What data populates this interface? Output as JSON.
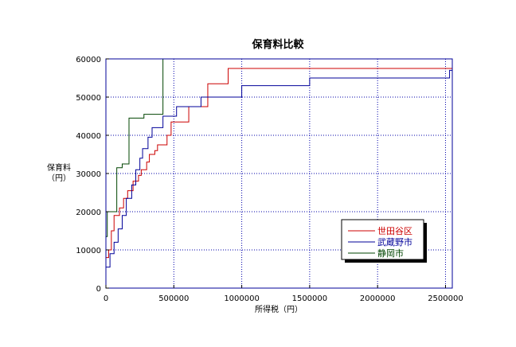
{
  "chart_data": {
    "type": "line",
    "step": true,
    "title": "保育料比較",
    "xlabel": "所得税（円）",
    "ylabel_lines": [
      "保育料",
      "（円）"
    ],
    "xlim": [
      0,
      2550000
    ],
    "ylim": [
      0,
      60000
    ],
    "x_ticks": [
      0,
      500000,
      1000000,
      1500000,
      2000000,
      2500000
    ],
    "x_tick_labels": [
      "0",
      "500000",
      "1000000",
      "1500000",
      "2000000",
      "2500000"
    ],
    "y_ticks": [
      0,
      10000,
      20000,
      30000,
      40000,
      50000,
      60000
    ],
    "y_tick_labels": [
      "0",
      "10000",
      "20000",
      "30000",
      "40000",
      "50000",
      "60000"
    ],
    "grid": true,
    "legend_position": "bottom-right",
    "series": [
      {
        "name": "世田谷区",
        "color": "#cc0000",
        "points": [
          [
            0,
            8000
          ],
          [
            20000,
            10000
          ],
          [
            40000,
            15000
          ],
          [
            60000,
            19000
          ],
          [
            100000,
            21000
          ],
          [
            130000,
            23500
          ],
          [
            160000,
            25500
          ],
          [
            200000,
            28000
          ],
          [
            240000,
            29500
          ],
          [
            260000,
            31000
          ],
          [
            300000,
            33000
          ],
          [
            320000,
            35000
          ],
          [
            360000,
            36000
          ],
          [
            380000,
            37500
          ],
          [
            450000,
            40000
          ],
          [
            480000,
            43500
          ],
          [
            610000,
            47500
          ],
          [
            750000,
            53500
          ],
          [
            900000,
            57500
          ],
          [
            2550000,
            57500
          ]
        ]
      },
      {
        "name": "武蔵野市",
        "color": "#000099",
        "points": [
          [
            0,
            5500
          ],
          [
            30000,
            9000
          ],
          [
            60000,
            12000
          ],
          [
            90000,
            15500
          ],
          [
            120000,
            19000
          ],
          [
            150000,
            23500
          ],
          [
            190000,
            27000
          ],
          [
            220000,
            31000
          ],
          [
            250000,
            34000
          ],
          [
            270000,
            36500
          ],
          [
            310000,
            39500
          ],
          [
            340000,
            42000
          ],
          [
            420000,
            45000
          ],
          [
            520000,
            47500
          ],
          [
            700000,
            50000
          ],
          [
            1000000,
            53000
          ],
          [
            1500000,
            55000
          ],
          [
            2530000,
            57000
          ],
          [
            2550000,
            57000
          ]
        ]
      },
      {
        "name": "静岡市",
        "color": "#004400",
        "points": [
          [
            0,
            13500
          ],
          [
            10000,
            20000
          ],
          [
            80000,
            31500
          ],
          [
            120000,
            32500
          ],
          [
            170000,
            44500
          ],
          [
            280000,
            45500
          ],
          [
            420000,
            60000
          ]
        ]
      }
    ]
  }
}
